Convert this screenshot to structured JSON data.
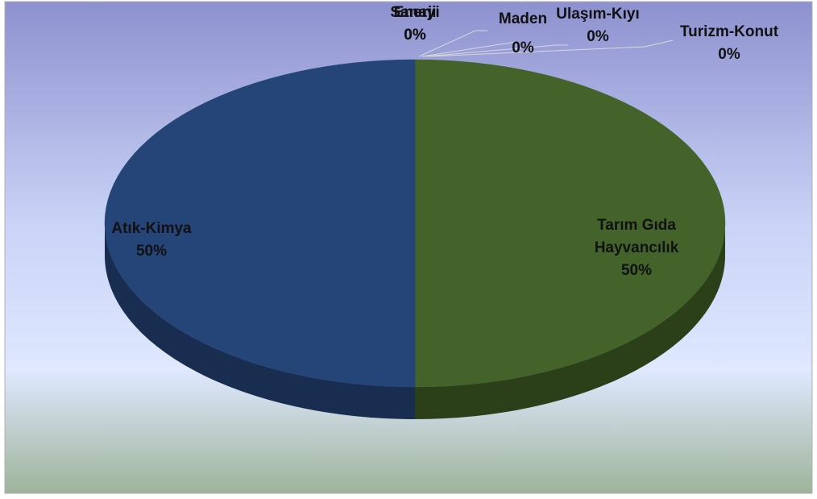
{
  "chart_data": {
    "type": "pie",
    "categories": [
      "Sanayi",
      "Enerji",
      "Maden",
      "Ulaşım-Kıyı",
      "Turizm-Konut",
      "Tarım Gıda Hayvancılık",
      "Atık-Kimya"
    ],
    "values": [
      0,
      0,
      0,
      0,
      0,
      50,
      50
    ],
    "value_labels": [
      "0%",
      "0%",
      "0%",
      "0%",
      "0%",
      "50%",
      "50%"
    ],
    "colors": [
      "#7f3f3f",
      "#6b5a8a",
      "#3f7f8a",
      "#c07a2a",
      "#5a6ea8",
      "#43632a",
      "#254478"
    ],
    "side_colors": [
      "#5a2c2c",
      "#4a3e60",
      "#2c5a60",
      "#8a571e",
      "#3e4e78",
      "#2b4019",
      "#182d50"
    ]
  }
}
